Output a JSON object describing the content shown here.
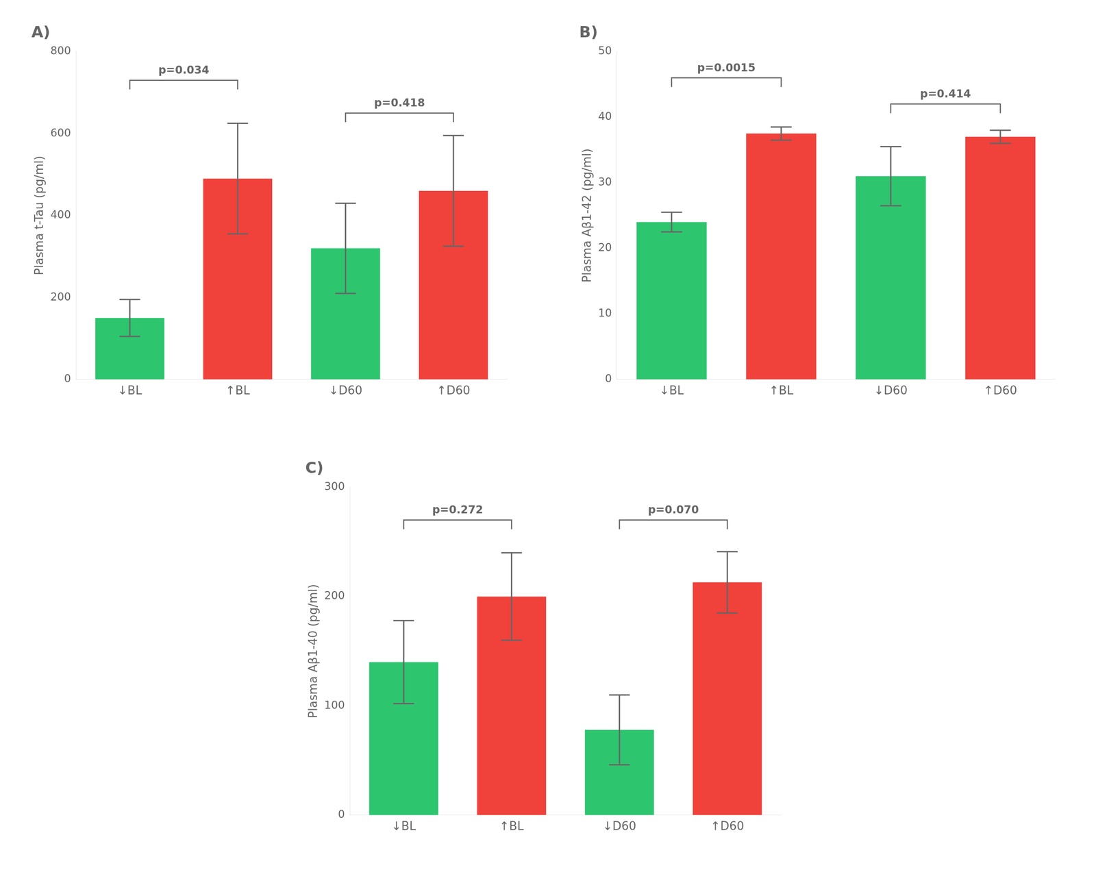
{
  "chart_data": [
    {
      "type": "bar",
      "title": "A)",
      "ylabel": "Plasma t-Tau (pg/ml)",
      "categories": [
        "↓BL",
        "↑BL",
        "↓D60",
        "↑D60"
      ],
      "values": [
        150,
        490,
        320,
        460
      ],
      "errors": [
        45,
        135,
        110,
        135
      ],
      "colors": [
        "#2dc56e",
        "#f0413b",
        "#2dc56e",
        "#f0413b"
      ],
      "ylim": [
        0,
        800
      ],
      "yticks": [
        0,
        200,
        400,
        600,
        800
      ],
      "grid": false,
      "annotations": [
        {
          "from": "↓BL",
          "to": "↑BL",
          "y": 730,
          "label": "p=0.034"
        },
        {
          "from": "↓D60",
          "to": "↑D60",
          "y": 650,
          "label": "p=0.418"
        }
      ]
    },
    {
      "type": "bar",
      "title": "B)",
      "ylabel": "Plasma Aβ1-42 (pg/ml)",
      "categories": [
        "↓BL",
        "↑BL",
        "↓D60",
        "↑D60"
      ],
      "values": [
        24,
        37.5,
        31,
        37
      ],
      "errors": [
        1.5,
        1.0,
        4.5,
        1.0
      ],
      "colors": [
        "#2dc56e",
        "#f0413b",
        "#2dc56e",
        "#f0413b"
      ],
      "ylim": [
        0,
        50
      ],
      "yticks": [
        0,
        10,
        20,
        30,
        40,
        50
      ],
      "grid": false,
      "annotations": [
        {
          "from": "↓BL",
          "to": "↑BL",
          "y": 46,
          "label": "p=0.0015"
        },
        {
          "from": "↓D60",
          "to": "↑D60",
          "y": 42,
          "label": "p=0.414"
        }
      ]
    },
    {
      "type": "bar",
      "title": "C)",
      "ylabel": "Plasma Aβ1-40 (pg/ml)",
      "categories": [
        "↓BL",
        "↑BL",
        "↓D60",
        "↑D60"
      ],
      "values": [
        140,
        200,
        78,
        213
      ],
      "errors": [
        38,
        40,
        32,
        28
      ],
      "colors": [
        "#2dc56e",
        "#f0413b",
        "#2dc56e",
        "#f0413b"
      ],
      "ylim": [
        0,
        300
      ],
      "yticks": [
        0,
        100,
        200,
        300
      ],
      "grid": false,
      "annotations": [
        {
          "from": "↓BL",
          "to": "↑BL",
          "y": 270,
          "label": "p=0.272"
        },
        {
          "from": "↓D60",
          "to": "↑D60",
          "y": 270,
          "label": "p=0.070"
        }
      ]
    }
  ]
}
